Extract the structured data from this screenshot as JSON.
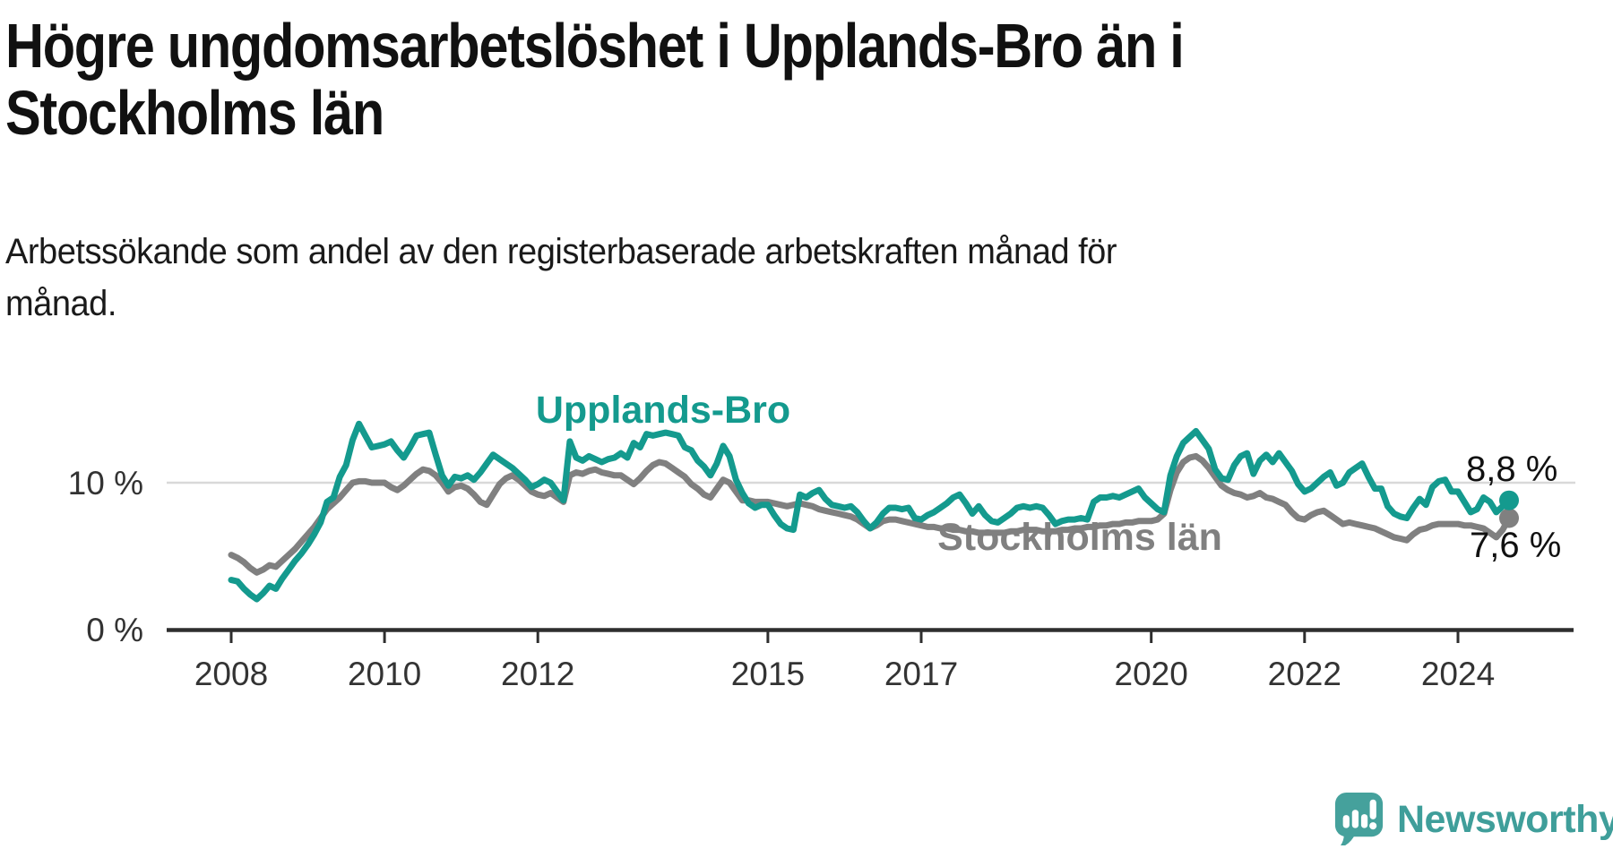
{
  "header": {
    "title_lines": [
      "Högre ungdomsarbetslöshet i Upplands-Bro än i",
      "Stockholms län"
    ],
    "subtitle_lines": [
      "Arbetssökande som andel av den registerbaserade arbetskraften månad för",
      "månad."
    ]
  },
  "chart_data": {
    "type": "line",
    "title": "Högre ungdomsarbetslöshet i Upplands-Bro än i Stockholms län",
    "xlabel": "",
    "ylabel": "Arbetssökande som andel av den registerbaserade arbetskraften",
    "x_start": "2008-01",
    "x_end": "2024-09",
    "interval": "monthly",
    "ylim": [
      0,
      14.5
    ],
    "grid": "horizontal gridline at 10% only",
    "legend_position": "inline-labels",
    "y_ticks": [
      {
        "value": 0,
        "label": "0 %"
      },
      {
        "value": 10,
        "label": "10 %"
      }
    ],
    "x_ticks": [
      {
        "year": 2008,
        "label": "2008"
      },
      {
        "year": 2010,
        "label": "2010"
      },
      {
        "year": 2012,
        "label": "2012"
      },
      {
        "year": 2015,
        "label": "2015"
      },
      {
        "year": 2017,
        "label": "2017"
      },
      {
        "year": 2020,
        "label": "2020"
      },
      {
        "year": 2022,
        "label": "2022"
      },
      {
        "year": 2024,
        "label": "2024"
      }
    ],
    "series": [
      {
        "name": "Stockholms län",
        "color": "#808080",
        "end_value": 7.6,
        "end_label": "7,6 %",
        "values": [
          5.1,
          4.9,
          4.6,
          4.2,
          3.9,
          4.1,
          4.4,
          4.3,
          4.7,
          5.1,
          5.5,
          6.0,
          6.5,
          7.0,
          7.6,
          8.2,
          8.6,
          9.0,
          9.5,
          10.0,
          10.1,
          10.1,
          10.0,
          10.0,
          10.0,
          9.7,
          9.5,
          9.8,
          10.2,
          10.6,
          10.9,
          10.8,
          10.5,
          10.0,
          9.4,
          9.7,
          9.8,
          9.6,
          9.2,
          8.7,
          8.5,
          9.2,
          9.9,
          10.3,
          10.5,
          10.2,
          9.8,
          9.4,
          9.2,
          9.1,
          9.3,
          9.0,
          8.7,
          10.5,
          10.7,
          10.6,
          10.8,
          10.9,
          10.7,
          10.6,
          10.5,
          10.5,
          10.2,
          9.9,
          10.3,
          10.8,
          11.2,
          11.4,
          11.3,
          11.0,
          10.7,
          10.4,
          9.9,
          9.6,
          9.2,
          9.0,
          9.6,
          10.2,
          10.0,
          9.4,
          8.8,
          8.8,
          8.7,
          8.7,
          8.7,
          8.6,
          8.5,
          8.4,
          8.5,
          8.6,
          8.5,
          8.4,
          8.2,
          8.1,
          8.0,
          7.9,
          7.8,
          7.7,
          7.5,
          7.2,
          6.9,
          7.1,
          7.4,
          7.5,
          7.5,
          7.4,
          7.3,
          7.2,
          7.1,
          7.0,
          7.0,
          6.9,
          6.9,
          6.8,
          6.8,
          6.7,
          6.7,
          6.6,
          6.6,
          6.6,
          6.6,
          6.6,
          6.7,
          6.7,
          6.8,
          6.8,
          6.8,
          6.7,
          6.7,
          6.7,
          6.8,
          6.8,
          6.9,
          6.9,
          7.0,
          7.0,
          7.1,
          7.1,
          7.2,
          7.2,
          7.3,
          7.3,
          7.4,
          7.4,
          7.4,
          7.5,
          7.9,
          9.5,
          10.7,
          11.4,
          11.7,
          11.8,
          11.5,
          11.0,
          10.4,
          9.8,
          9.5,
          9.3,
          9.2,
          9.0,
          9.1,
          9.3,
          9.0,
          8.9,
          8.7,
          8.5,
          8.0,
          7.6,
          7.5,
          7.8,
          8.0,
          8.1,
          7.8,
          7.5,
          7.2,
          7.3,
          7.2,
          7.1,
          7.0,
          6.9,
          6.7,
          6.5,
          6.3,
          6.2,
          6.1,
          6.5,
          6.8,
          6.9,
          7.1,
          7.2,
          7.2,
          7.2,
          7.2,
          7.1,
          7.1,
          7.0,
          6.9,
          6.6,
          6.3,
          6.8,
          7.6
        ]
      },
      {
        "name": "Upplands-Bro",
        "color": "#149a8e",
        "end_value": 8.8,
        "end_label": "8,8 %",
        "values": [
          3.4,
          3.3,
          2.8,
          2.4,
          2.1,
          2.5,
          3.0,
          2.8,
          3.5,
          4.1,
          4.7,
          5.2,
          5.8,
          6.5,
          7.3,
          8.7,
          9.0,
          10.4,
          11.2,
          12.9,
          14.0,
          13.2,
          12.4,
          12.5,
          12.6,
          12.8,
          12.2,
          11.7,
          12.4,
          13.2,
          13.3,
          13.4,
          11.9,
          10.5,
          9.8,
          10.4,
          10.3,
          10.5,
          10.2,
          10.7,
          11.3,
          11.9,
          11.6,
          11.3,
          11.0,
          10.6,
          10.2,
          9.7,
          9.9,
          10.2,
          10.0,
          9.4,
          8.8,
          12.8,
          11.7,
          11.5,
          11.8,
          11.6,
          11.4,
          11.6,
          11.7,
          12.0,
          11.7,
          12.7,
          12.4,
          13.3,
          13.2,
          13.3,
          13.4,
          13.3,
          13.2,
          12.4,
          12.2,
          11.5,
          11.1,
          10.5,
          11.3,
          12.5,
          11.8,
          10.2,
          9.3,
          8.6,
          8.3,
          8.5,
          8.5,
          7.8,
          7.2,
          6.9,
          6.8,
          9.2,
          9.0,
          9.3,
          9.5,
          8.9,
          8.5,
          8.4,
          8.3,
          8.4,
          8.0,
          7.4,
          6.9,
          7.3,
          7.9,
          8.3,
          8.3,
          8.2,
          8.3,
          7.6,
          7.5,
          7.8,
          8.0,
          8.3,
          8.6,
          9.0,
          9.2,
          8.6,
          7.9,
          8.4,
          7.8,
          7.4,
          7.3,
          7.6,
          7.9,
          8.3,
          8.4,
          8.3,
          8.4,
          8.3,
          7.8,
          7.2,
          7.4,
          7.5,
          7.5,
          7.6,
          7.5,
          8.7,
          9.0,
          9.0,
          9.1,
          9.0,
          9.2,
          9.4,
          9.6,
          9.0,
          8.6,
          8.2,
          8.0,
          10.5,
          11.8,
          12.7,
          13.1,
          13.5,
          12.9,
          12.3,
          10.9,
          10.3,
          10.2,
          11.2,
          11.8,
          12.0,
          10.6,
          11.5,
          11.9,
          11.4,
          12.0,
          11.4,
          10.8,
          9.9,
          9.4,
          9.6,
          10.0,
          10.4,
          10.7,
          9.8,
          10.0,
          10.7,
          11.0,
          11.3,
          10.4,
          9.6,
          9.6,
          8.4,
          7.9,
          7.7,
          7.6,
          8.3,
          8.9,
          8.5,
          9.7,
          10.1,
          10.2,
          9.4,
          9.4,
          8.7,
          8.0,
          8.2,
          9.0,
          8.7,
          8.0,
          8.4,
          8.8
        ]
      }
    ]
  },
  "branding": {
    "logo_text": "Newsworthy",
    "logo_color": "#3f9e9a",
    "logo_icon": "speech-bubble-bar-chart-icon"
  }
}
